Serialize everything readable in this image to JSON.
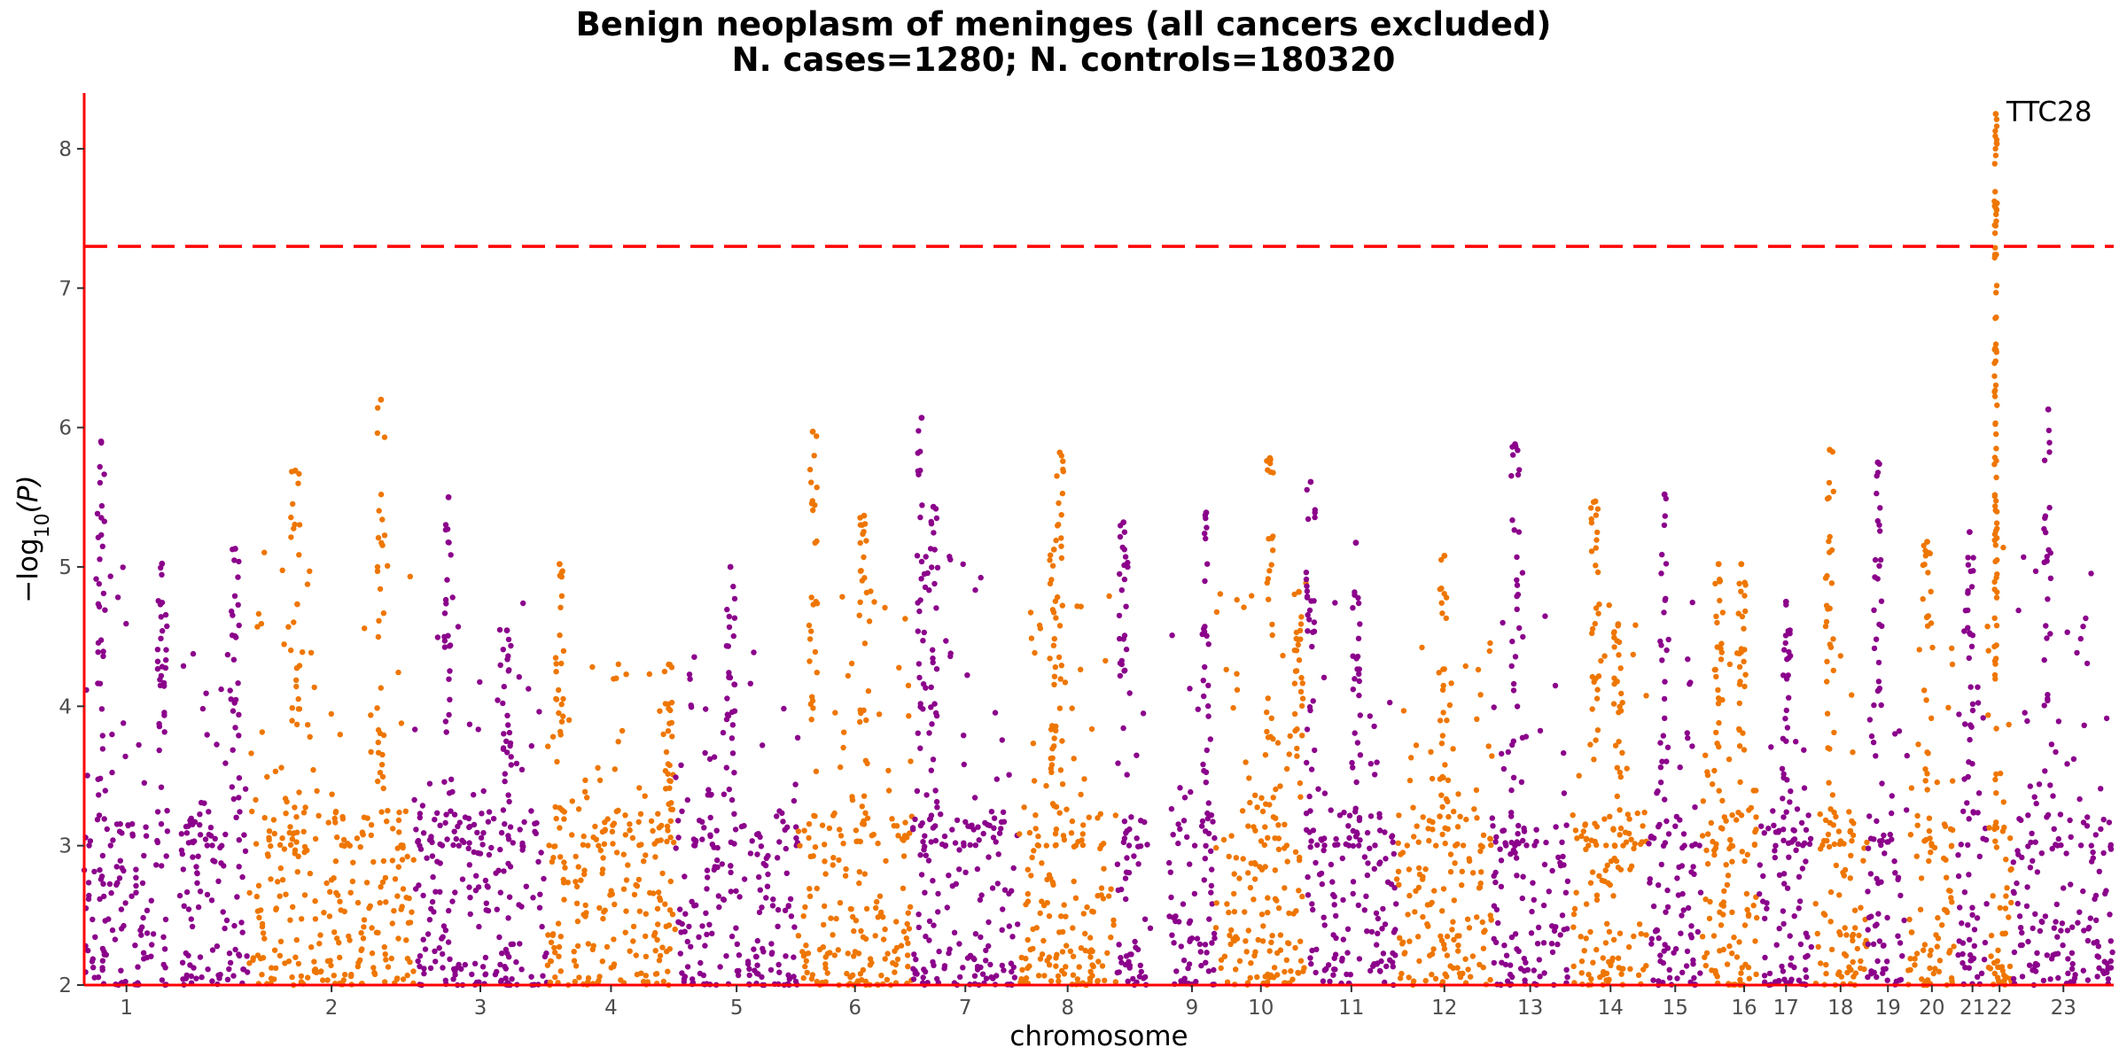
{
  "chart_data": {
    "type": "scatter",
    "subtype": "manhattan",
    "title": "Benign neoplasm of meninges (all cancers excluded)",
    "subtitle": "N. cases=1280; N. controls=180320",
    "xlabel": "chromosome",
    "ylabel": "−log10(P)",
    "ylim": [
      2,
      8.4
    ],
    "yticks": [
      2,
      3,
      4,
      5,
      6,
      7,
      8
    ],
    "threshold": 7.3,
    "colors": {
      "odd": "#8b008b",
      "even": "#ee7600",
      "threshold": "#ff0000",
      "axis": "#ff0000"
    },
    "grid": false,
    "chromosomes": [
      {
        "label": "1",
        "start": 0.0,
        "end": 1.0,
        "max": 5.9,
        "peaks": [
          0.2,
          0.92
        ]
      },
      {
        "label": "",
        "start": 1.13,
        "end": 1.95,
        "max": 5.13,
        "peaks": [
          0.8
        ]
      },
      {
        "label": "2",
        "start": 1.95,
        "end": 3.9,
        "max": 6.2,
        "peaks": [
          0.8,
          0.28
        ]
      },
      {
        "label": "3",
        "start": 3.9,
        "end": 5.47,
        "max": 5.5,
        "peaks": [
          0.26,
          0.7
        ]
      },
      {
        "label": "4",
        "start": 5.47,
        "end": 6.99,
        "max": 5.02,
        "peaks": [
          0.1,
          0.95
        ]
      },
      {
        "label": "5",
        "start": 6.99,
        "end": 8.44,
        "max": 5.0,
        "peaks": [
          0.45
        ]
      },
      {
        "label": "6",
        "start": 8.44,
        "end": 9.79,
        "max": 5.97,
        "peaks": [
          0.13,
          0.58
        ]
      },
      {
        "label": "7",
        "start": 9.79,
        "end": 11.05,
        "max": 6.07,
        "peaks": [
          0.09,
          0.2
        ]
      },
      {
        "label": "8",
        "start": 11.05,
        "end": 12.21,
        "max": 5.82,
        "peaks": [
          0.42,
          0.36
        ]
      },
      {
        "label": "",
        "start": 12.21,
        "end": 12.61,
        "max": 5.32,
        "peaks": [
          0.2
        ]
      },
      {
        "label": "9",
        "start": 12.82,
        "end": 13.38,
        "max": 5.39,
        "peaks": [
          0.8
        ]
      },
      {
        "label": "10",
        "start": 13.38,
        "end": 14.45,
        "max": 5.78,
        "peaks": [
          0.6,
          0.92
        ]
      },
      {
        "label": "11",
        "start": 14.45,
        "end": 15.52,
        "max": 5.61,
        "peaks": [
          0.05,
          0.55
        ]
      },
      {
        "label": "12",
        "start": 15.52,
        "end": 16.65,
        "max": 5.08,
        "peaks": [
          0.5
        ]
      },
      {
        "label": "13",
        "start": 16.65,
        "end": 17.55,
        "max": 5.88,
        "peaks": [
          0.3
        ]
      },
      {
        "label": "14",
        "start": 17.6,
        "end": 18.5,
        "max": 5.47,
        "peaks": [
          0.3,
          0.6
        ]
      },
      {
        "label": "15",
        "start": 18.5,
        "end": 19.13,
        "max": 5.52,
        "peaks": [
          0.3
        ]
      },
      {
        "label": "",
        "start": 19.13,
        "end": 19.46,
        "max": 5.02,
        "peaks": [
          0.6
        ]
      },
      {
        "label": "16",
        "start": 19.46,
        "end": 19.8,
        "max": 5.02,
        "peaks": [
          0.4
        ]
      },
      {
        "label": "17",
        "start": 19.8,
        "end": 20.45,
        "max": 4.75,
        "peaks": [
          0.5
        ]
      },
      {
        "label": "18",
        "start": 20.45,
        "end": 21.09,
        "max": 5.84,
        "peaks": [
          0.3
        ]
      },
      {
        "label": "19",
        "start": 21.09,
        "end": 21.57,
        "max": 5.75,
        "peaks": [
          0.25
        ]
      },
      {
        "label": "20",
        "start": 21.57,
        "end": 22.13,
        "max": 5.18,
        "peaks": [
          0.4
        ]
      },
      {
        "label": "21",
        "start": 22.16,
        "end": 22.5,
        "max": 5.25,
        "peaks": [
          0.4
        ]
      },
      {
        "label": "22",
        "start": 22.5,
        "end": 22.8,
        "max": 8.25,
        "peaks": [
          0.35
        ]
      },
      {
        "label": "23",
        "start": 22.81,
        "end": 24.0,
        "max": 6.13,
        "peaks": [
          0.35
        ]
      }
    ],
    "annotations": [
      {
        "text": "TTC28",
        "chromosome": "22",
        "y": 8.25
      }
    ]
  }
}
